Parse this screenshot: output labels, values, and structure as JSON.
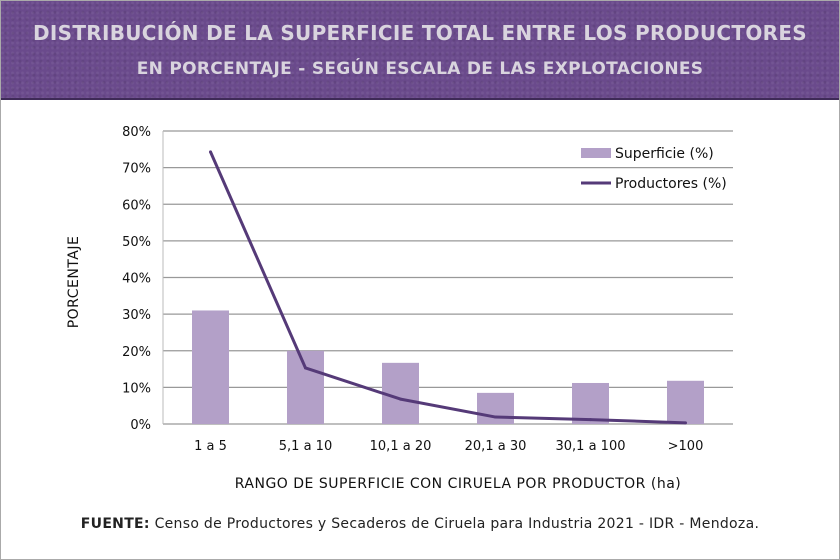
{
  "header": {
    "title_line1": "DISTRIBUCIÓN DE LA SUPERFICIE TOTAL ENTRE LOS PRODUCTORES",
    "title_line2": "EN PORCENTAJE - SEGÚN ESCALA DE LAS EXPLOTACIONES"
  },
  "footer": {
    "label": "FUENTE:",
    "text": " Censo de Productores y Secaderos de Ciruela para Industria 2021 - IDR - Mendoza."
  },
  "chart_data": {
    "type": "bar+line",
    "categories": [
      "1 a 5",
      "5,1 a 10",
      "10,1 a 20",
      "20,1 a 30",
      "30,1 a 100",
      ">100"
    ],
    "series": [
      {
        "name": "Superficie (%)",
        "type": "bar",
        "color": "#b3a0c8",
        "values": [
          31,
          20,
          16.7,
          8.5,
          11.2,
          11.8
        ]
      },
      {
        "name": "Productores (%)",
        "type": "line",
        "color": "#553a78",
        "values": [
          74.3,
          15.3,
          6.8,
          1.9,
          1.2,
          0.3
        ]
      }
    ],
    "xlabel": "RANGO DE SUPERFICIE CON CIRUELA POR PRODUCTOR (ha)",
    "ylabel": "PORCENTAJE",
    "ylim": [
      0,
      80
    ],
    "yticks": [
      "0%",
      "10%",
      "20%",
      "30%",
      "40%",
      "50%",
      "60%",
      "70%",
      "80%"
    ],
    "grid": true,
    "legend": "top-right"
  }
}
